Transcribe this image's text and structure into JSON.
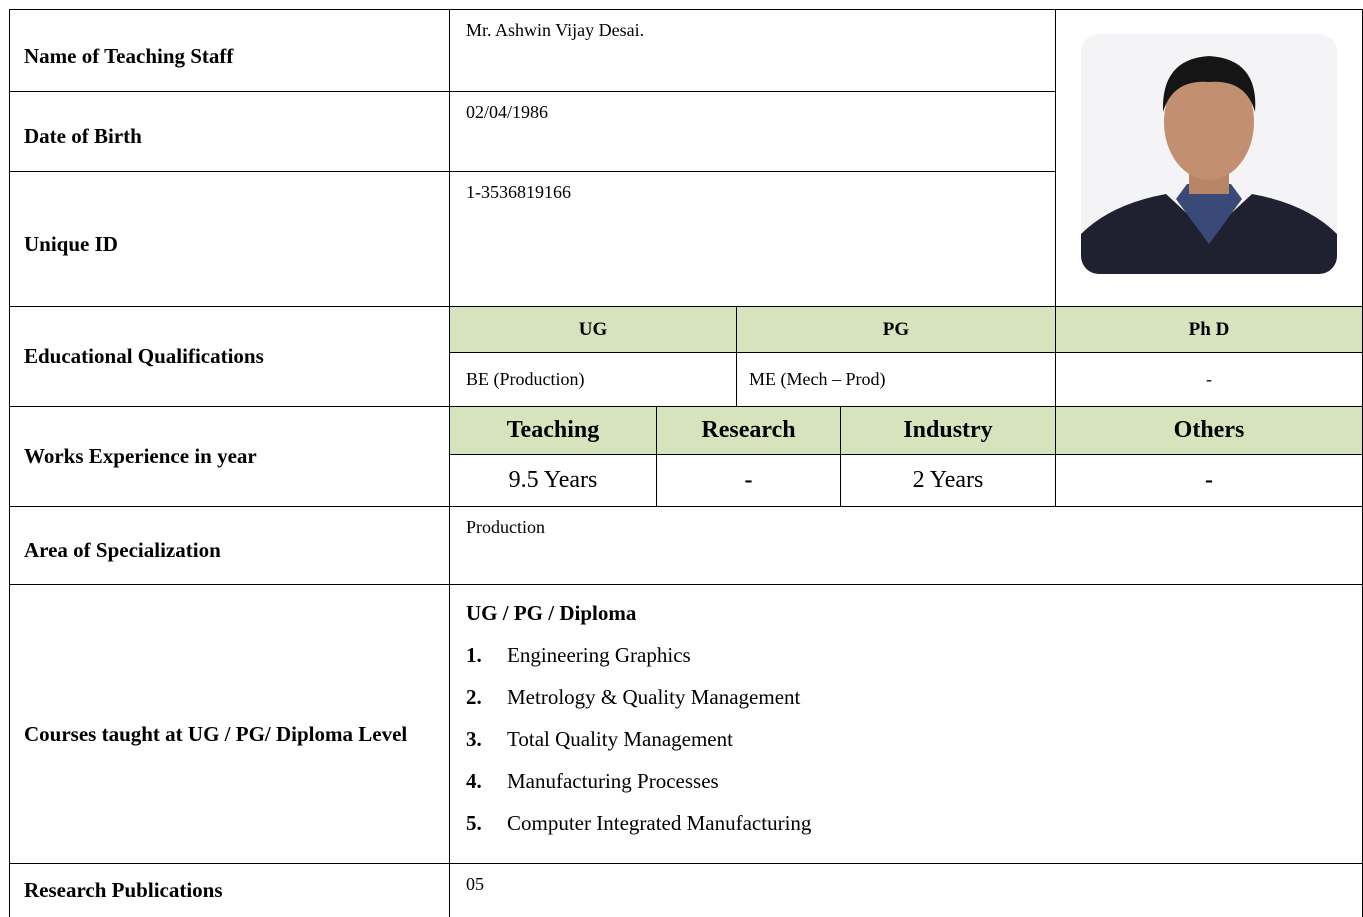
{
  "rows": {
    "name": {
      "label": "Name of Teaching Staff",
      "value": "Mr. Ashwin Vijay Desai."
    },
    "dob": {
      "label": "Date of Birth",
      "value": "02/04/1986"
    },
    "uid": {
      "label": "Unique ID",
      "value": "1-3536819166"
    },
    "education": {
      "label": "Educational Qualifications",
      "headers": [
        "UG",
        "PG",
        "Ph D"
      ],
      "values": [
        "BE (Production)",
        "ME (Mech – Prod)",
        "-"
      ]
    },
    "experience": {
      "label": "Works Experience in year",
      "headers": [
        "Teaching",
        "Research",
        "Industry",
        "Others"
      ],
      "values": [
        "9.5 Years",
        "-",
        "2 Years",
        "-"
      ]
    },
    "specialization": {
      "label": "Area of Specialization",
      "value": "Production"
    },
    "courses": {
      "label": "Courses taught at UG / PG/ Diploma Level",
      "heading": "UG / PG / Diploma",
      "items": [
        {
          "number": "1.",
          "text": "Engineering Graphics"
        },
        {
          "number": "2.",
          "text": "Metrology & Quality Management"
        },
        {
          "number": "3.",
          "text": "Total Quality Management"
        },
        {
          "number": "4.",
          "text": "Manufacturing Processes"
        },
        {
          "number": "5.",
          "text": "Computer Integrated Manufacturing"
        }
      ]
    },
    "publications": {
      "label": "Research Publications",
      "value": "05"
    }
  }
}
